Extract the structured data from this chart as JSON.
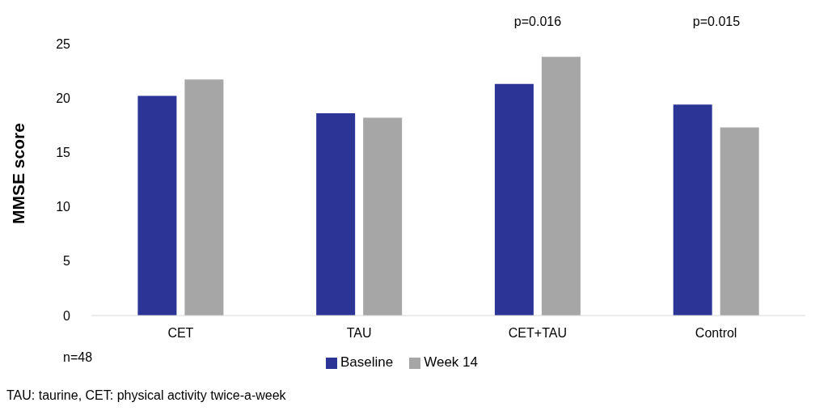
{
  "chart_data": {
    "type": "bar",
    "ylabel": "MMSE score",
    "categories": [
      "CET",
      "TAU",
      "CET+TAU",
      "Control"
    ],
    "series": [
      {
        "name": "Baseline",
        "color": "#2c3595",
        "values": [
          20.2,
          18.6,
          21.3,
          19.4
        ]
      },
      {
        "name": "Week 14",
        "color": "#a6a6a6",
        "values": [
          21.7,
          18.2,
          23.8,
          17.3
        ]
      }
    ],
    "ylim": [
      0,
      25
    ],
    "yticks": [
      0,
      5,
      10,
      15,
      20,
      25
    ],
    "grid": false,
    "legend": "bottom",
    "annotations": [
      "p=0.016",
      "p=0.015",
      "n=48",
      "TAU: taurine, CET: physical activity twice-a-week"
    ]
  }
}
